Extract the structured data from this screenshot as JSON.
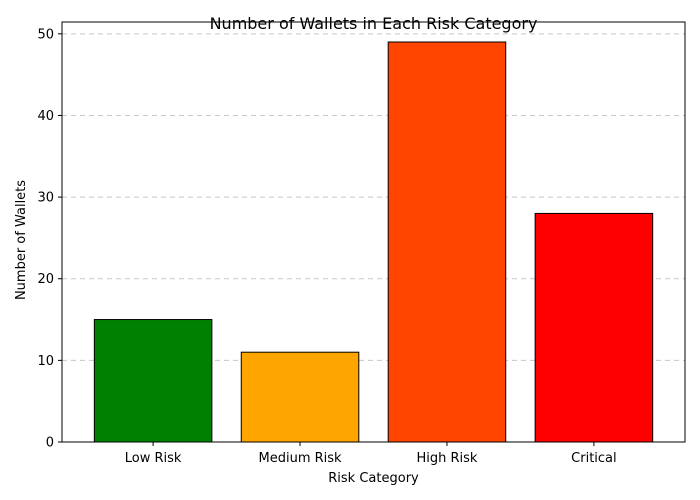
{
  "chart_data": {
    "type": "bar",
    "title": "Number of Wallets in Each Risk Category",
    "xlabel": "Risk Category",
    "ylabel": "Number of Wallets",
    "categories": [
      "Low Risk",
      "Medium Risk",
      "High Risk",
      "Critical"
    ],
    "values": [
      15,
      11,
      49,
      28
    ],
    "colors": [
      "#008000",
      "#ffa500",
      "#ff4500",
      "#ff0000"
    ],
    "ylim": [
      0,
      51.45
    ],
    "yticks": [
      0,
      10,
      20,
      30,
      40,
      50
    ],
    "grid": "y-dashed",
    "legend": "none"
  }
}
